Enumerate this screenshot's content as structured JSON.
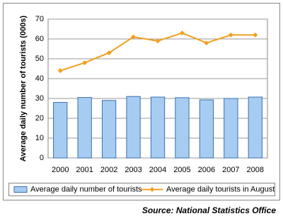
{
  "chart_data": {
    "type": "bar",
    "y_label": "Average daily number of tourists (000s)",
    "categories": [
      "2000",
      "2001",
      "2002",
      "2003",
      "2004",
      "2005",
      "2006",
      "2007",
      "2008"
    ],
    "series": [
      {
        "name": "Average daily number of tourists",
        "type": "bar",
        "color": "#a6ccf2",
        "values": [
          28,
          30.5,
          29,
          31,
          30.7,
          30.4,
          29.3,
          30,
          30.7
        ]
      },
      {
        "name": "Average daily tourists in August",
        "type": "line",
        "color": "#f0a020",
        "values": [
          44,
          48,
          53,
          61,
          59,
          63,
          58,
          62,
          62
        ]
      }
    ],
    "ylim": [
      0,
      70
    ],
    "yticks": [
      0,
      10,
      20,
      30,
      40,
      50,
      60,
      70
    ],
    "grid": true,
    "source": "Source: National Statistics Office"
  }
}
